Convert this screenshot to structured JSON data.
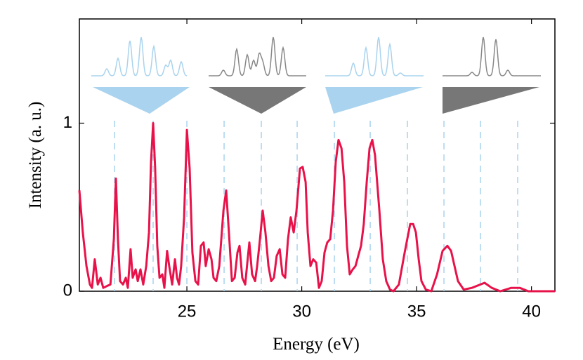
{
  "chart_data": {
    "type": "line",
    "xlabel": "Energy (eV)",
    "ylabel": "Intensity (a. u.)",
    "xlim": [
      20.32,
      41.02
    ],
    "ylim": [
      0,
      1.62
    ],
    "xticks": [
      25,
      30,
      35,
      40
    ],
    "yticks": [
      0,
      1
    ],
    "reference_lines": [
      21.85,
      23.53,
      25.0,
      26.62,
      28.24,
      29.8,
      31.42,
      32.98,
      34.6,
      36.19,
      37.78,
      39.4
    ],
    "reference_color": "#a9d3ee",
    "series": [
      {
        "color": "#e8124a",
        "x": [
          20.32,
          20.47,
          20.63,
          20.78,
          20.87,
          20.99,
          21.12,
          21.24,
          21.36,
          21.51,
          21.67,
          21.82,
          21.91,
          22.0,
          22.09,
          22.22,
          22.34,
          22.43,
          22.55,
          22.64,
          22.77,
          22.86,
          22.98,
          23.1,
          23.23,
          23.35,
          23.44,
          23.53,
          23.62,
          23.71,
          23.81,
          23.93,
          24.02,
          24.14,
          24.23,
          24.36,
          24.48,
          24.57,
          24.66,
          24.75,
          24.88,
          25.0,
          25.12,
          25.24,
          25.37,
          25.49,
          25.61,
          25.73,
          25.82,
          25.95,
          26.07,
          26.16,
          26.28,
          26.41,
          26.59,
          26.71,
          26.83,
          26.96,
          27.08,
          27.2,
          27.29,
          27.41,
          27.54,
          27.63,
          27.72,
          27.84,
          27.97,
          28.06,
          28.18,
          28.3,
          28.42,
          28.55,
          28.67,
          28.79,
          28.91,
          29.04,
          29.16,
          29.28,
          29.4,
          29.52,
          29.65,
          29.77,
          29.92,
          30.04,
          30.17,
          30.26,
          30.38,
          30.5,
          30.63,
          30.75,
          30.87,
          30.99,
          31.11,
          31.24,
          31.36,
          31.48,
          31.6,
          31.73,
          31.85,
          31.97,
          32.09,
          32.22,
          32.34,
          32.46,
          32.58,
          32.7,
          32.83,
          32.95,
          33.07,
          33.19,
          33.38,
          33.53,
          33.68,
          33.84,
          33.99,
          34.23,
          34.48,
          34.72,
          34.85,
          34.97,
          35.09,
          35.21,
          35.4,
          35.64,
          35.89,
          36.13,
          36.34,
          36.5,
          36.65,
          36.8,
          37.05,
          37.41,
          37.96,
          38.27,
          38.64,
          39.12,
          39.49,
          39.86,
          40.41,
          41.02
        ],
        "values": [
          0.6,
          0.35,
          0.15,
          0.04,
          0.02,
          0.19,
          0.04,
          0.08,
          0.02,
          0.03,
          0.04,
          0.31,
          0.67,
          0.31,
          0.06,
          0.04,
          0.08,
          0.02,
          0.25,
          0.08,
          0.13,
          0.06,
          0.13,
          0.04,
          0.15,
          0.35,
          0.77,
          1.0,
          0.73,
          0.27,
          0.08,
          0.1,
          0.02,
          0.24,
          0.15,
          0.04,
          0.19,
          0.08,
          0.04,
          0.15,
          0.44,
          0.96,
          0.73,
          0.23,
          0.06,
          0.04,
          0.27,
          0.29,
          0.15,
          0.25,
          0.19,
          0.08,
          0.06,
          0.15,
          0.48,
          0.6,
          0.35,
          0.06,
          0.08,
          0.23,
          0.27,
          0.08,
          0.04,
          0.17,
          0.29,
          0.1,
          0.06,
          0.15,
          0.31,
          0.48,
          0.35,
          0.15,
          0.06,
          0.08,
          0.21,
          0.25,
          0.1,
          0.08,
          0.31,
          0.44,
          0.35,
          0.48,
          0.73,
          0.74,
          0.65,
          0.35,
          0.15,
          0.19,
          0.17,
          0.02,
          0.06,
          0.23,
          0.29,
          0.31,
          0.48,
          0.77,
          0.9,
          0.85,
          0.65,
          0.27,
          0.1,
          0.13,
          0.15,
          0.21,
          0.27,
          0.4,
          0.65,
          0.85,
          0.9,
          0.81,
          0.48,
          0.19,
          0.06,
          0.01,
          0,
          0.04,
          0.23,
          0.4,
          0.4,
          0.35,
          0.19,
          0.06,
          0.01,
          0,
          0.1,
          0.24,
          0.27,
          0.24,
          0.15,
          0.06,
          0.01,
          0.02,
          0.05,
          0.02,
          0,
          0.02,
          0.02,
          0,
          0,
          0
        ]
      }
    ]
  }
}
